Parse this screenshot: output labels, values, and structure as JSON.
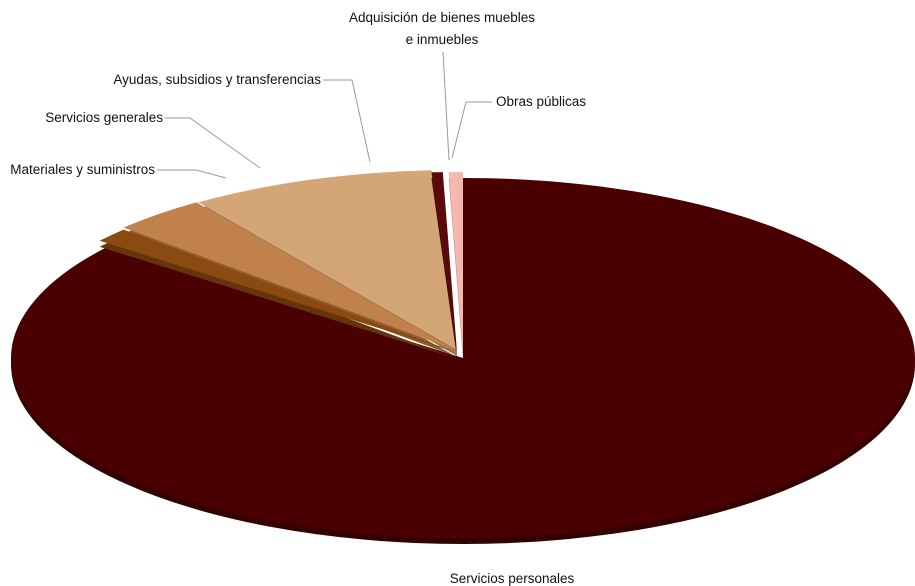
{
  "chart_data": {
    "type": "pie",
    "title": "",
    "categories": [
      "Servicios personales",
      "Materiales y suministros",
      "Servicios generales",
      "Ayudas, subsidios y transferencias",
      "Adquisición de bienes muebles e inmuebles",
      "Obras públicas"
    ],
    "values": [
      85.6,
      1.3,
      3.4,
      8.8,
      0.4,
      0.5
    ],
    "colors": [
      "#4a0000",
      "#8b4a10",
      "#c0824a",
      "#d4a676",
      "#5a0a0a",
      "#f4b8ae"
    ],
    "label_lines": [
      [
        "Servicios personales"
      ],
      [
        "Materiales y suministros"
      ],
      [
        "Servicios generales"
      ],
      [
        "Ayudas, subsidios y transferencias"
      ],
      [
        "Adquisición de bienes muebles",
        "e inmuebles"
      ],
      [
        "Obras públicas"
      ]
    ],
    "exploded": true,
    "perspective": "3d-tilted",
    "legend": "none",
    "grid": false
  }
}
